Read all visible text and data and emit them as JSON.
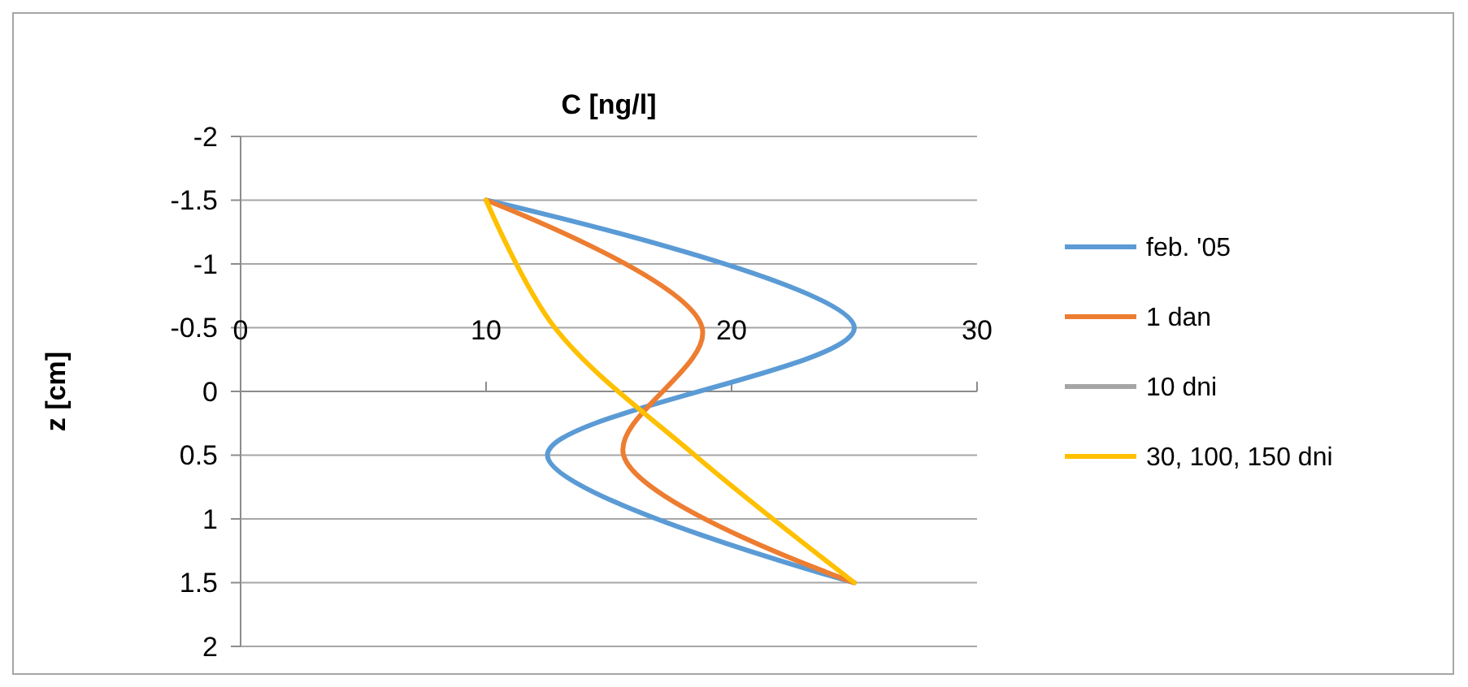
{
  "chart_data": {
    "type": "line",
    "title": "C [ng/l]",
    "ylabel": "z [cm]",
    "ylim": [
      2,
      -2
    ],
    "yticks": [
      -2,
      -1.5,
      -1,
      -0.5,
      0,
      0.5,
      1,
      1.5,
      2
    ],
    "xlim": [
      0,
      30
    ],
    "xticks": [
      0,
      10,
      20,
      30
    ],
    "grid": "y",
    "legend": "right",
    "line_style": "solid",
    "series": [
      {
        "name": "feb. '05",
        "color": "#5b9bd5",
        "x": [
          10,
          25,
          12.5,
          25
        ],
        "values": [
          -1.5,
          -0.5,
          0.5,
          1.5
        ]
      },
      {
        "name": "1 dan",
        "color": "#ed7d31",
        "x": [
          10,
          18.8,
          15.6,
          25
        ],
        "values": [
          -1.5,
          -0.5,
          0.5,
          1.5
        ]
      },
      {
        "name": "10 dni",
        "color": "#a5a5a5",
        "x": [
          null,
          null,
          null,
          null
        ],
        "values": [
          null,
          null,
          null,
          null
        ]
      },
      {
        "name": "30, 100, 150 dni",
        "color": "#ffc000",
        "x": [
          10,
          12.8,
          18.5,
          25
        ],
        "values": [
          -1.5,
          -0.5,
          0.5,
          1.5
        ]
      }
    ]
  }
}
